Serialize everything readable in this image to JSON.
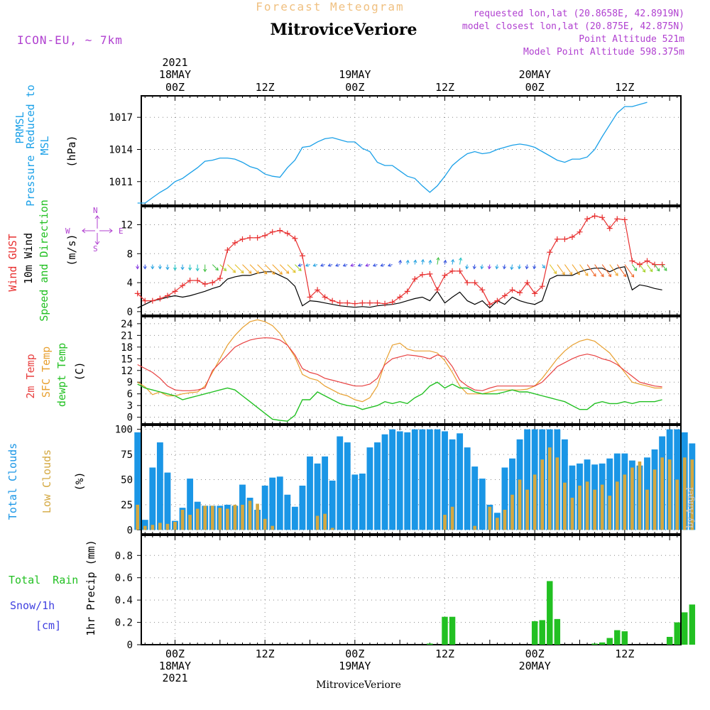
{
  "header": {
    "subtitle": "Forecast Meteogram",
    "title": "MitroviceVeriore",
    "model": "ICON-EU, ~ 7km",
    "requested": "requested lon,lat (20.8658E, 42.8919N)",
    "closest": "model closest lon,lat (20.875E, 42.875N)",
    "point_alt": "Point Altitude 521m",
    "model_alt": "Model Point Altitude 598.375m"
  },
  "footer": {
    "station": "MitroviceVeriore",
    "watermark": "by Angel"
  },
  "time_axis": {
    "top_year": "2021",
    "days": [
      {
        "t": 6,
        "date": "18MAY",
        "z": "00Z"
      },
      {
        "t": 30,
        "date": "19MAY",
        "z": "00Z"
      },
      {
        "t": 54,
        "date": "20MAY",
        "z": "00Z"
      }
    ],
    "noons": [
      {
        "t": 18,
        "z": "12Z"
      },
      {
        "t": 42,
        "z": "12Z"
      },
      {
        "t": 66,
        "z": "12Z"
      }
    ],
    "bottom": [
      {
        "t": 6,
        "lines": [
          "00Z",
          "18MAY",
          "2021"
        ]
      },
      {
        "t": 18,
        "lines": [
          "12Z"
        ]
      },
      {
        "t": 30,
        "lines": [
          "00Z",
          "19MAY"
        ]
      },
      {
        "t": 42,
        "lines": [
          "12Z"
        ]
      },
      {
        "t": 54,
        "lines": [
          "00Z",
          "20MAY"
        ]
      },
      {
        "t": 66,
        "lines": [
          "12Z"
        ]
      }
    ]
  },
  "labels": {
    "pressure": [
      "PRMSL",
      "Pressure Reduced to MSL",
      "(hPa)"
    ],
    "wind": [
      "Wind GUST",
      "10m Wind",
      "Speed and Direction",
      "(m/s)"
    ],
    "compass": {
      "n": "N",
      "s": "S",
      "e": "E",
      "w": "W"
    },
    "temp": [
      "2m Temp",
      "SFC Temp",
      "dewpt Temp",
      "(C)"
    ],
    "clouds": [
      "Total Clouds",
      "Low Clouds",
      "(%)"
    ],
    "precip": [
      "Total Rain",
      "Snow/1h",
      "[cm]",
      "1hr Precip (mm)"
    ]
  },
  "colors": {
    "pressure": "#1aa0e8",
    "gust": "#e83030",
    "wind": "#000000",
    "temp2m": "#e84040",
    "sfc": "#e8a030",
    "dewpt": "#22c022",
    "total_cloud": "#1a96e6",
    "low_cloud": "#d4a840",
    "rain": "#22c022",
    "snow": "#4040e0",
    "header_subtitle": "#f0c080",
    "header_info": "#b040d0"
  },
  "chart_data": [
    {
      "type": "line",
      "panel": "pressure",
      "ylabel": "(hPa)",
      "yticks": [
        1011,
        1014,
        1017
      ],
      "ylim": [
        1008.8,
        1019.0
      ],
      "series": [
        {
          "name": "PRMSL",
          "x0": 1,
          "step": 1,
          "values": [
            1009.0,
            1009.0,
            1009.5,
            1010.0,
            1010.4,
            1011.0,
            1011.3,
            1011.8,
            1012.3,
            1012.9,
            1013.0,
            1013.2,
            1013.2,
            1013.1,
            1012.8,
            1012.4,
            1012.2,
            1011.7,
            1011.5,
            1011.4,
            1012.3,
            1013.0,
            1014.2,
            1014.3,
            1014.7,
            1015.0,
            1015.1,
            1014.9,
            1014.7,
            1014.7,
            1014.1,
            1013.8,
            1012.8,
            1012.5,
            1012.5,
            1012.0,
            1011.5,
            1011.3,
            1010.6,
            1010.0,
            1010.6,
            1011.5,
            1012.5,
            1013.1,
            1013.6,
            1013.8,
            1013.6,
            1013.7,
            1014.0,
            1014.2,
            1014.4,
            1014.5,
            1014.4,
            1014.2,
            1013.8,
            1013.4,
            1013.0,
            1012.8,
            1013.1,
            1013.1,
            1013.3,
            1014.0,
            1015.2,
            1016.3,
            1017.4,
            1018.0,
            1018.0,
            1018.2,
            1018.4
          ]
        }
      ]
    },
    {
      "type": "line",
      "panel": "wind",
      "ylabel": "(m/s)",
      "yticks": [
        0,
        4,
        8,
        12
      ],
      "ylim": [
        -0.5,
        14.5
      ],
      "series": [
        {
          "name": "Wind GUST",
          "x0": 1,
          "step": 1,
          "values": [
            2.5,
            1.5,
            1.5,
            1.8,
            2.2,
            2.8,
            3.6,
            4.3,
            4.3,
            3.8,
            4.0,
            4.6,
            8.5,
            9.5,
            10.0,
            10.2,
            10.2,
            10.5,
            11.0,
            11.2,
            10.8,
            10.1,
            7.7,
            2.0,
            3.0,
            2.0,
            1.5,
            1.2,
            1.2,
            1.1,
            1.2,
            1.2,
            1.2,
            1.1,
            1.3,
            2.0,
            2.8,
            4.5,
            5.1,
            5.2,
            3.0,
            5.0,
            5.6,
            5.6,
            4.0,
            4.0,
            3.0,
            1.0,
            1.5,
            2.2,
            3.0,
            2.6,
            4.0,
            2.5,
            3.5,
            8.2,
            10.0,
            10.0,
            10.3,
            11.0,
            12.8,
            13.2,
            13.0,
            11.5,
            12.8,
            12.7,
            7.0,
            6.5,
            7.0,
            6.5,
            6.5
          ]
        },
        {
          "name": "10m Wind",
          "x0": 1,
          "step": 1,
          "values": [
            0.5,
            1.0,
            1.5,
            1.7,
            2.0,
            2.2,
            2.0,
            2.2,
            2.5,
            2.8,
            3.2,
            3.5,
            4.5,
            4.8,
            5.0,
            5.0,
            5.3,
            5.5,
            5.5,
            5.0,
            4.5,
            3.5,
            0.8,
            1.5,
            1.4,
            1.2,
            1.0,
            0.8,
            0.7,
            0.6,
            0.7,
            0.6,
            0.8,
            0.9,
            1.0,
            1.2,
            1.5,
            1.8,
            2.0,
            1.5,
            2.8,
            1.2,
            2.0,
            2.7,
            1.5,
            1.0,
            1.5,
            0.5,
            1.5,
            1.0,
            2.0,
            1.5,
            1.2,
            1.0,
            1.5,
            4.5,
            5.0,
            5.0,
            5.0,
            5.5,
            5.8,
            6.0,
            6.0,
            5.5,
            6.0,
            6.2,
            3.0,
            3.7,
            3.5,
            3.2,
            3.0
          ]
        }
      ]
    },
    {
      "type": "line",
      "panel": "temperature",
      "ylabel": "(C)",
      "yticks": [
        0,
        3,
        6,
        9,
        12,
        15,
        18,
        21,
        24
      ],
      "ylim": [
        -1.7,
        25.8
      ],
      "series": [
        {
          "name": "2m Temp",
          "x0": 1,
          "step": 1,
          "values": [
            13.5,
            12.5,
            11.5,
            10.0,
            8.0,
            7.0,
            6.8,
            6.8,
            7.0,
            7.5,
            12.0,
            14.0,
            16.0,
            18.0,
            19.0,
            19.8,
            20.2,
            20.4,
            20.3,
            19.8,
            18.5,
            16.0,
            12.5,
            11.5,
            11.0,
            10.0,
            9.5,
            9.0,
            8.5,
            8.0,
            8.0,
            8.5,
            10.0,
            13.5,
            15.0,
            15.5,
            16.0,
            15.8,
            15.5,
            15.0,
            16.0,
            15.5,
            13.0,
            9.5,
            8.0,
            7.0,
            6.8,
            7.5,
            8.0,
            8.0,
            8.0,
            8.0,
            8.0,
            8.0,
            9.0,
            11.0,
            13.0,
            14.0,
            15.0,
            15.8,
            16.2,
            15.8,
            15.0,
            14.5,
            13.5,
            12.0,
            10.5,
            9.0,
            8.5,
            8.0,
            7.8
          ]
        },
        {
          "name": "SFC Temp",
          "x0": 1,
          "step": 1,
          "values": [
            9.0,
            7.8,
            5.8,
            6.5,
            5.5,
            5.5,
            6.0,
            6.3,
            6.5,
            8.0,
            11.5,
            15.0,
            18.5,
            21.0,
            23.0,
            24.5,
            25.0,
            24.5,
            23.5,
            21.5,
            18.5,
            15.5,
            11.0,
            10.0,
            9.5,
            8.0,
            7.0,
            6.0,
            5.5,
            4.5,
            4.0,
            5.0,
            8.0,
            14.0,
            18.5,
            19.0,
            17.5,
            17.0,
            17.0,
            17.0,
            16.5,
            14.5,
            11.5,
            8.0,
            6.0,
            6.0,
            6.0,
            6.5,
            7.0,
            7.0,
            7.0,
            7.0,
            7.2,
            8.0,
            10.0,
            12.5,
            15.0,
            17.0,
            18.5,
            19.5,
            20.0,
            19.5,
            18.0,
            16.5,
            14.0,
            11.5,
            9.0,
            8.5,
            8.0,
            7.5,
            7.5
          ]
        },
        {
          "name": "dewpt Temp",
          "x0": 1,
          "step": 1,
          "values": [
            8.5,
            7.5,
            7.0,
            6.5,
            6.0,
            5.5,
            4.5,
            5.0,
            5.5,
            6.0,
            6.5,
            7.0,
            7.5,
            7.0,
            5.5,
            4.0,
            2.5,
            1.0,
            -0.5,
            -0.8,
            -1.0,
            0.5,
            4.5,
            4.5,
            6.5,
            5.5,
            4.5,
            3.5,
            3.0,
            2.8,
            2.0,
            2.5,
            3.0,
            4.0,
            3.5,
            4.0,
            3.5,
            5.0,
            6.0,
            8.0,
            9.0,
            7.5,
            8.5,
            7.5,
            7.5,
            6.5,
            6.0,
            6.0,
            6.0,
            6.5,
            7.0,
            6.5,
            6.5,
            6.0,
            5.5,
            5.0,
            4.5,
            4.0,
            3.0,
            2.0,
            2.0,
            3.5,
            4.0,
            3.5,
            3.5,
            4.0,
            3.5,
            4.0,
            4.0,
            4.0,
            4.5
          ]
        }
      ]
    },
    {
      "type": "bar",
      "panel": "clouds",
      "ylabel": "(%)",
      "yticks": [
        0,
        25,
        50,
        75,
        100
      ],
      "ylim": [
        -4,
        104
      ],
      "series": [
        {
          "name": "Total Clouds",
          "x0": 1,
          "step": 1,
          "values": [
            97,
            10,
            62,
            87,
            57,
            9,
            22,
            51,
            28,
            24,
            24,
            24,
            25,
            24,
            45,
            32,
            20,
            44,
            52,
            53,
            35,
            23,
            44,
            73,
            66,
            73,
            49,
            93,
            87,
            55,
            56,
            82,
            87,
            95,
            100,
            98,
            97,
            100,
            100,
            100,
            100,
            98,
            90,
            96,
            82,
            63,
            51,
            25,
            17,
            62,
            71,
            90,
            100,
            100,
            100,
            100,
            100,
            90,
            64,
            66,
            70,
            65,
            66,
            71,
            76,
            76,
            69,
            64,
            72,
            80,
            93,
            100,
            100,
            97,
            86
          ]
        },
        {
          "name": "Low Clouds",
          "x0": 1,
          "step": 1,
          "values": [
            25,
            4,
            5,
            7,
            6,
            8,
            20,
            15,
            21,
            24,
            24,
            22,
            21,
            25,
            25,
            29,
            26,
            11,
            4,
            0,
            0,
            0,
            0,
            0,
            14,
            16,
            2,
            0,
            0,
            0,
            0,
            0,
            0,
            0,
            0,
            0,
            0,
            0,
            0,
            0,
            0,
            15,
            23,
            0,
            0,
            4,
            0,
            23,
            12,
            20,
            35,
            50,
            40,
            55,
            70,
            82,
            72,
            47,
            32,
            44,
            48,
            40,
            45,
            34,
            48,
            55,
            62,
            68,
            40,
            60,
            72,
            70,
            50,
            72,
            70
          ]
        }
      ]
    },
    {
      "type": "bar",
      "panel": "precip",
      "ylabel": "1hr Precip (mm)",
      "yticks": [
        0,
        0.2,
        0.4,
        0.6,
        0.8
      ],
      "ylim": [
        0,
        0.98
      ],
      "series": [
        {
          "name": "Total Rain",
          "x0": 1,
          "step": 1,
          "values": [
            0,
            0,
            0,
            0,
            0,
            0,
            0,
            0,
            0,
            0,
            0,
            0,
            0,
            0,
            0,
            0,
            0,
            0,
            0,
            0,
            0,
            0,
            0,
            0,
            0,
            0,
            0,
            0,
            0,
            0,
            0,
            0,
            0,
            0,
            0,
            0,
            0,
            0,
            0,
            0.01,
            0,
            0.25,
            0.25,
            0,
            0,
            0,
            0,
            0,
            0,
            0,
            0,
            0,
            0,
            0.21,
            0.22,
            0.57,
            0.23,
            0,
            0,
            0,
            0,
            0.01,
            0.02,
            0.06,
            0.13,
            0.12,
            0,
            0,
            0,
            0,
            0,
            0.07,
            0.2,
            0.29,
            0.36
          ]
        }
      ]
    }
  ]
}
